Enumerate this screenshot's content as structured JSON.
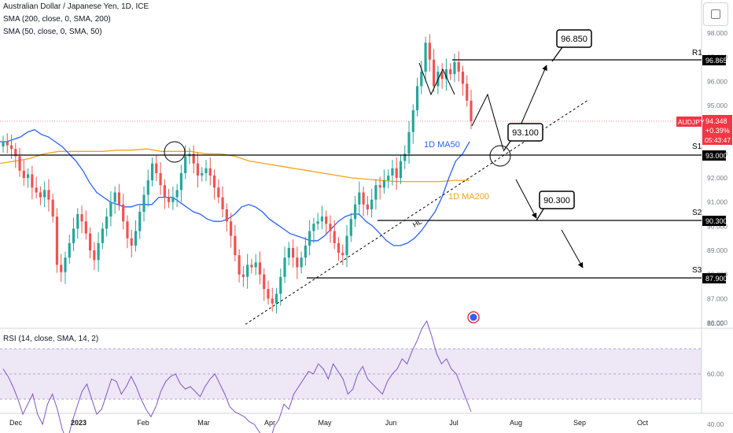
{
  "header": {
    "title": "Australian Dollar / Japanese Yen, 1D, ICE",
    "sma200": "SMA (200, close, 0, SMA, 200)",
    "sma50": "SMA (50, close, 0, SMA, 50)",
    "rsi": "RSI (14, close, SMA, 14, 2)"
  },
  "colors": {
    "up": "#26a69a",
    "down": "#ef5350",
    "ma50": "#2962ff",
    "ma200": "#f7a21b",
    "rsi": "#7e57c2",
    "rsi_band": "#ede7f6",
    "line": "#000000",
    "last_price": "#f23645"
  },
  "chart_data": [
    {
      "type": "candlestick",
      "symbol": "AUDJPY",
      "x_ticks": [
        "Dec",
        "2023",
        "Feb",
        "Mar",
        "Apr",
        "May",
        "Jun",
        "Jul",
        "Aug",
        "Sep",
        "Oct"
      ],
      "y_ticks": [
        98.0,
        97.0,
        96.0,
        95.0,
        94.0,
        93.0,
        92.0,
        91.0,
        90.0,
        89.0,
        88.0,
        87.0,
        86.0
      ],
      "y_tick_labels": [
        "98.000",
        "97.000",
        "96.000",
        "95.000",
        "94.000",
        "93.000",
        "92.000",
        "91.000",
        "90.000",
        "89.000",
        "88.000",
        "87.000",
        "86.000"
      ],
      "ylim": [
        85.8,
        98.6
      ],
      "last_price": {
        "symbol": "AUDJPY",
        "value": "94.348",
        "change": "+0.39%",
        "countdown": "05:43:47"
      },
      "closes": [
        93.5,
        93.35,
        93.2,
        92.9,
        92.3,
        92.0,
        92.15,
        91.6,
        91.4,
        91.2,
        91.5,
        91.1,
        90.4,
        88.4,
        88.1,
        88.7,
        89.3,
        89.9,
        90.5,
        90.2,
        89.7,
        89.0,
        88.6,
        89.3,
        89.9,
        90.4,
        91.0,
        91.4,
        90.9,
        90.2,
        89.5,
        89.2,
        89.8,
        90.6,
        91.3,
        91.9,
        92.6,
        92.2,
        91.7,
        91.2,
        91.0,
        91.2,
        91.5,
        92.2,
        92.9,
        93.0,
        92.6,
        92.1,
        92.2,
        92.4,
        92.1,
        91.6,
        91.2,
        90.7,
        90.2,
        89.6,
        88.8,
        88.0,
        87.9,
        88.4,
        88.3,
        88.5,
        88.0,
        87.4,
        87.0,
        86.8,
        87.2,
        87.9,
        88.7,
        89.1,
        88.7,
        88.3,
        88.7,
        89.2,
        89.8,
        90.1,
        90.2,
        90.4,
        90.1,
        89.8,
        89.3,
        88.9,
        88.8,
        89.6,
        90.3,
        90.9,
        91.4,
        90.9,
        90.7,
        91.1,
        91.7,
        91.6,
        91.9,
        92.1,
        92.4,
        92.0,
        92.7,
        93.0,
        93.9,
        94.8,
        95.8,
        96.4,
        97.6,
        96.9,
        95.8,
        96.4,
        96.1,
        96.5,
        96.3,
        96.8,
        96.4,
        95.9,
        95.2,
        94.35
      ],
      "ma50": [
        93.5,
        93.5,
        93.6,
        93.7,
        93.9,
        94.0,
        93.8,
        93.7,
        93.5,
        93.3,
        93.0,
        92.7,
        92.3,
        91.8,
        91.4,
        91.2,
        91.0,
        90.9,
        90.8,
        90.8,
        90.9,
        90.9,
        90.9,
        91.2,
        91.2,
        91.2,
        91.0,
        90.8,
        90.6,
        90.5,
        90.3,
        90.2,
        90.2,
        90.3,
        90.5,
        90.8,
        90.9,
        90.8,
        90.6,
        90.3,
        90.1,
        89.9,
        89.7,
        89.6,
        89.5,
        89.4,
        89.4,
        89.6,
        89.9,
        90.2,
        90.4,
        90.5,
        90.5,
        90.2,
        90.0,
        89.7,
        89.4,
        89.2,
        89.2,
        89.3,
        89.5,
        89.8,
        90.2,
        90.6,
        91.2,
        92.0,
        92.7,
        93.0,
        93.5
      ],
      "ma200": [
        92.6,
        92.7,
        92.8,
        93.0,
        93.1,
        93.1,
        93.1,
        93.1,
        93.15,
        93.15,
        93.2,
        93.1,
        93.1,
        93.1,
        93.0,
        93.0,
        92.9,
        92.7,
        92.6,
        92.5,
        92.4,
        92.3,
        92.2,
        92.1,
        92.0,
        91.95,
        91.9,
        91.85,
        91.85,
        91.85,
        91.85,
        91.9,
        91.9
      ],
      "levels": [
        {
          "label": "R1",
          "value": "96.865"
        },
        {
          "label": "S1",
          "value": "93.000"
        },
        {
          "label": "S2",
          "value": "90.300"
        },
        {
          "label": "S3",
          "value": "87.900"
        }
      ],
      "callouts": [
        "96.850",
        "93.100",
        "90.300"
      ],
      "annotations": [
        "1D MA50",
        "1D MA200",
        "HL"
      ]
    },
    {
      "type": "line",
      "name": "RSI",
      "y_ticks": [
        80.0,
        60.0,
        40.0
      ],
      "y_tick_labels": [
        "80.00",
        "60.00",
        "40.00"
      ],
      "ylim": [
        30,
        83
      ],
      "band": [
        30,
        70
      ],
      "values": [
        62,
        59,
        55,
        50,
        44,
        48,
        52,
        44,
        40,
        48,
        52,
        46,
        38,
        33,
        41,
        47,
        53,
        56,
        50,
        44,
        46,
        52,
        58,
        57,
        52,
        55,
        59,
        55,
        50,
        46,
        43,
        47,
        53,
        57,
        59,
        60,
        56,
        54,
        55,
        53,
        51,
        55,
        58,
        60,
        56,
        52,
        47,
        45,
        44,
        43,
        41,
        40,
        37,
        34,
        32,
        39,
        42,
        48,
        46,
        52,
        55,
        58,
        61,
        60,
        64,
        62,
        58,
        64,
        61,
        58,
        52,
        54,
        60,
        63,
        58,
        56,
        54,
        52,
        57,
        60,
        62,
        66,
        64,
        69,
        73,
        78,
        81,
        75,
        68,
        64,
        66,
        62,
        60,
        55,
        50,
        45
      ]
    }
  ]
}
